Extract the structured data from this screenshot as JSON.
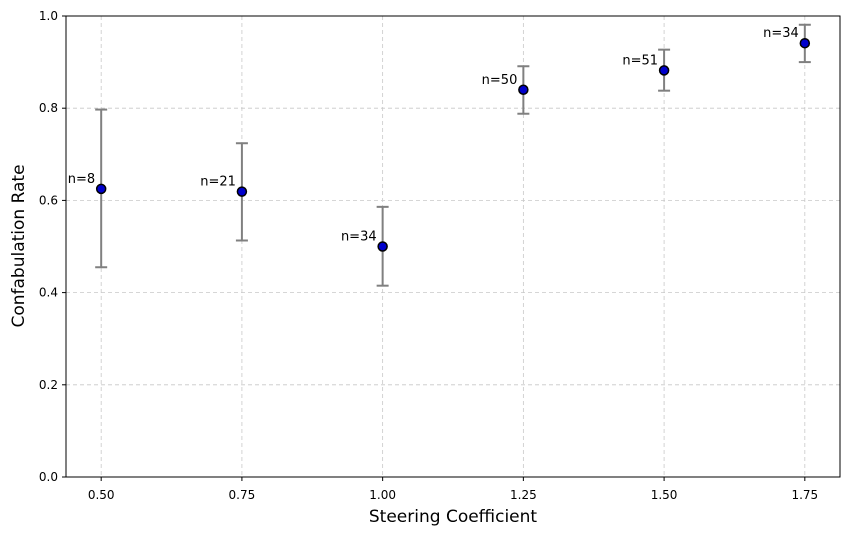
{
  "chart_data": {
    "type": "scatter",
    "title": "",
    "xlabel": "Steering Coefficient",
    "ylabel": "Confabulation Rate",
    "xlim": [
      0.4375,
      1.8125
    ],
    "ylim": [
      0.0,
      1.0
    ],
    "x_ticks": [
      "0.50",
      "0.75",
      "1.00",
      "1.25",
      "1.50",
      "1.75"
    ],
    "y_ticks": [
      "0.0",
      "0.2",
      "0.4",
      "0.6",
      "0.8",
      "1.0"
    ],
    "grid": true,
    "colors": {
      "marker_fill": "#0000cc",
      "marker_edge": "#000000",
      "errorbar": "#808080",
      "grid": "#c8c8c8"
    },
    "points": [
      {
        "x": 0.5,
        "y": 0.625,
        "err_low": 0.455,
        "err_high": 0.797,
        "label": "n=8"
      },
      {
        "x": 0.75,
        "y": 0.619,
        "err_low": 0.513,
        "err_high": 0.724,
        "label": "n=21"
      },
      {
        "x": 1.0,
        "y": 0.5,
        "err_low": 0.415,
        "err_high": 0.586,
        "label": "n=34"
      },
      {
        "x": 1.25,
        "y": 0.84,
        "err_low": 0.788,
        "err_high": 0.891,
        "label": "n=50"
      },
      {
        "x": 1.5,
        "y": 0.882,
        "err_low": 0.838,
        "err_high": 0.927,
        "label": "n=51"
      },
      {
        "x": 1.75,
        "y": 0.941,
        "err_low": 0.9,
        "err_high": 0.981,
        "label": "n=34"
      }
    ]
  }
}
